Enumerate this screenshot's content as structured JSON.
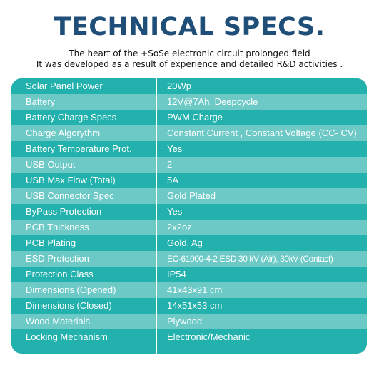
{
  "header": {
    "title": "TECHNICAL SPECS.",
    "subtitle_line1": "The heart of the +SoSe electronic circuit prolonged field",
    "subtitle_line2": "It was developed as a result of experience and detailed R&D activities ."
  },
  "colors": {
    "title": "#1f4e79",
    "row_dark": "#23b1ad",
    "row_light": "#6cc9c6",
    "divider": "#ffffff",
    "text": "#ffffff"
  },
  "specs": [
    {
      "label": "Solar Panel Power",
      "value": "20Wp"
    },
    {
      "label": "Battery",
      "value": "12V@7Ah, Deepcycle"
    },
    {
      "label": "Battery Charge Specs",
      "value": "PWM Charge"
    },
    {
      "label": "Charge Algorythm",
      "value": "Constant Current , Constant Voltage (CC- CV)"
    },
    {
      "label": "Battery Temperature Prot.",
      "value": "Yes"
    },
    {
      "label": "USB Output",
      "value": "2"
    },
    {
      "label": "USB Max Flow (Total)",
      "value": "5A"
    },
    {
      "label": "USB Connector Spec",
      "value": "Gold Plated"
    },
    {
      "label": "ByPass Protection",
      "value": "Yes"
    },
    {
      "label": "PCB Thickness",
      "value": "2x2oz"
    },
    {
      "label": "PCB Plating",
      "value": "Gold, Ag"
    },
    {
      "label": "ESD Protection",
      "value": "EC-61000-4-2 ESD 30 kV (Air), 30kV (Contact)"
    },
    {
      "label": "Protection Class",
      "value": "IP54"
    },
    {
      "label": "Dimensions (Opened)",
      "value": "41x43x91 cm"
    },
    {
      "label": "Dimensions (Closed)",
      "value": "14x51x53 cm"
    },
    {
      "label": "Wood Materials",
      "value": "Plywood"
    },
    {
      "label": "Locking Mechanism",
      "value": "Electronic/Mechanic"
    }
  ]
}
